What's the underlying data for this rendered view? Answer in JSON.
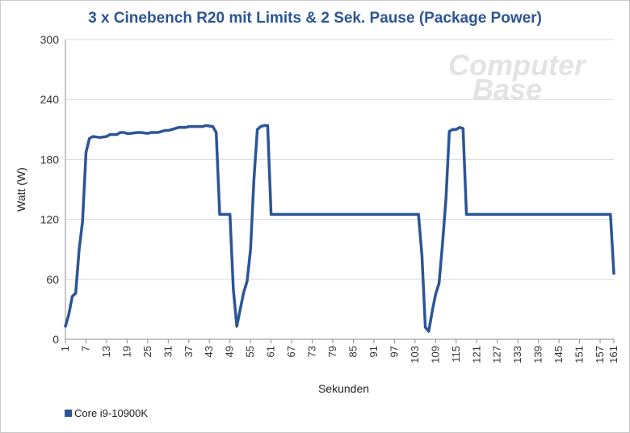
{
  "chart_data": {
    "type": "line",
    "title": "3 x Cinebench R20 mit Limits & 2 Sek. Pause (Package Power)",
    "xlabel": "Sekunden",
    "ylabel": "Watt (W)",
    "ylim": [
      0,
      300
    ],
    "yticks": [
      0,
      60,
      120,
      180,
      240,
      300
    ],
    "xlim": [
      1,
      161
    ],
    "xticks": [
      1,
      7,
      13,
      19,
      25,
      31,
      37,
      43,
      49,
      55,
      61,
      67,
      73,
      79,
      85,
      91,
      97,
      103,
      109,
      115,
      121,
      127,
      133,
      139,
      145,
      151,
      157,
      161
    ],
    "grid": true,
    "legend_position": "bottom-left",
    "series": [
      {
        "name": "Core i9-10900K",
        "color": "#2c5597",
        "x": [
          1,
          2,
          3,
          4,
          5,
          6,
          7,
          8,
          9,
          11,
          13,
          14,
          16,
          17,
          18,
          19,
          20,
          22,
          23,
          25,
          26,
          28,
          29,
          30,
          31,
          32,
          34,
          36,
          37,
          39,
          41,
          42,
          44,
          45,
          46,
          48,
          49,
          50,
          51,
          52,
          53,
          54,
          55,
          56,
          57,
          58,
          59,
          60,
          61,
          65,
          75,
          100,
          104,
          105,
          106,
          107,
          108,
          109,
          110,
          111,
          112,
          113,
          114,
          115,
          116,
          117,
          118,
          119,
          120,
          125,
          140,
          160,
          161
        ],
        "values": [
          13,
          25,
          43,
          46,
          90,
          118,
          187,
          201,
          203,
          202,
          203,
          205,
          205,
          207,
          207,
          206,
          206,
          207,
          207,
          206,
          207,
          207,
          208,
          209,
          209,
          210,
          212,
          212,
          213,
          213,
          213,
          214,
          213,
          207,
          125,
          125,
          125,
          50,
          13,
          30,
          47,
          58,
          90,
          160,
          210,
          213,
          214,
          214,
          125,
          125,
          125,
          125,
          125,
          84,
          12,
          8,
          28,
          45,
          56,
          95,
          140,
          208,
          210,
          210,
          212,
          211,
          125,
          125,
          125,
          125,
          125,
          125,
          66
        ]
      }
    ]
  },
  "watermark": {
    "line1": "Computer",
    "line2": "Base"
  }
}
